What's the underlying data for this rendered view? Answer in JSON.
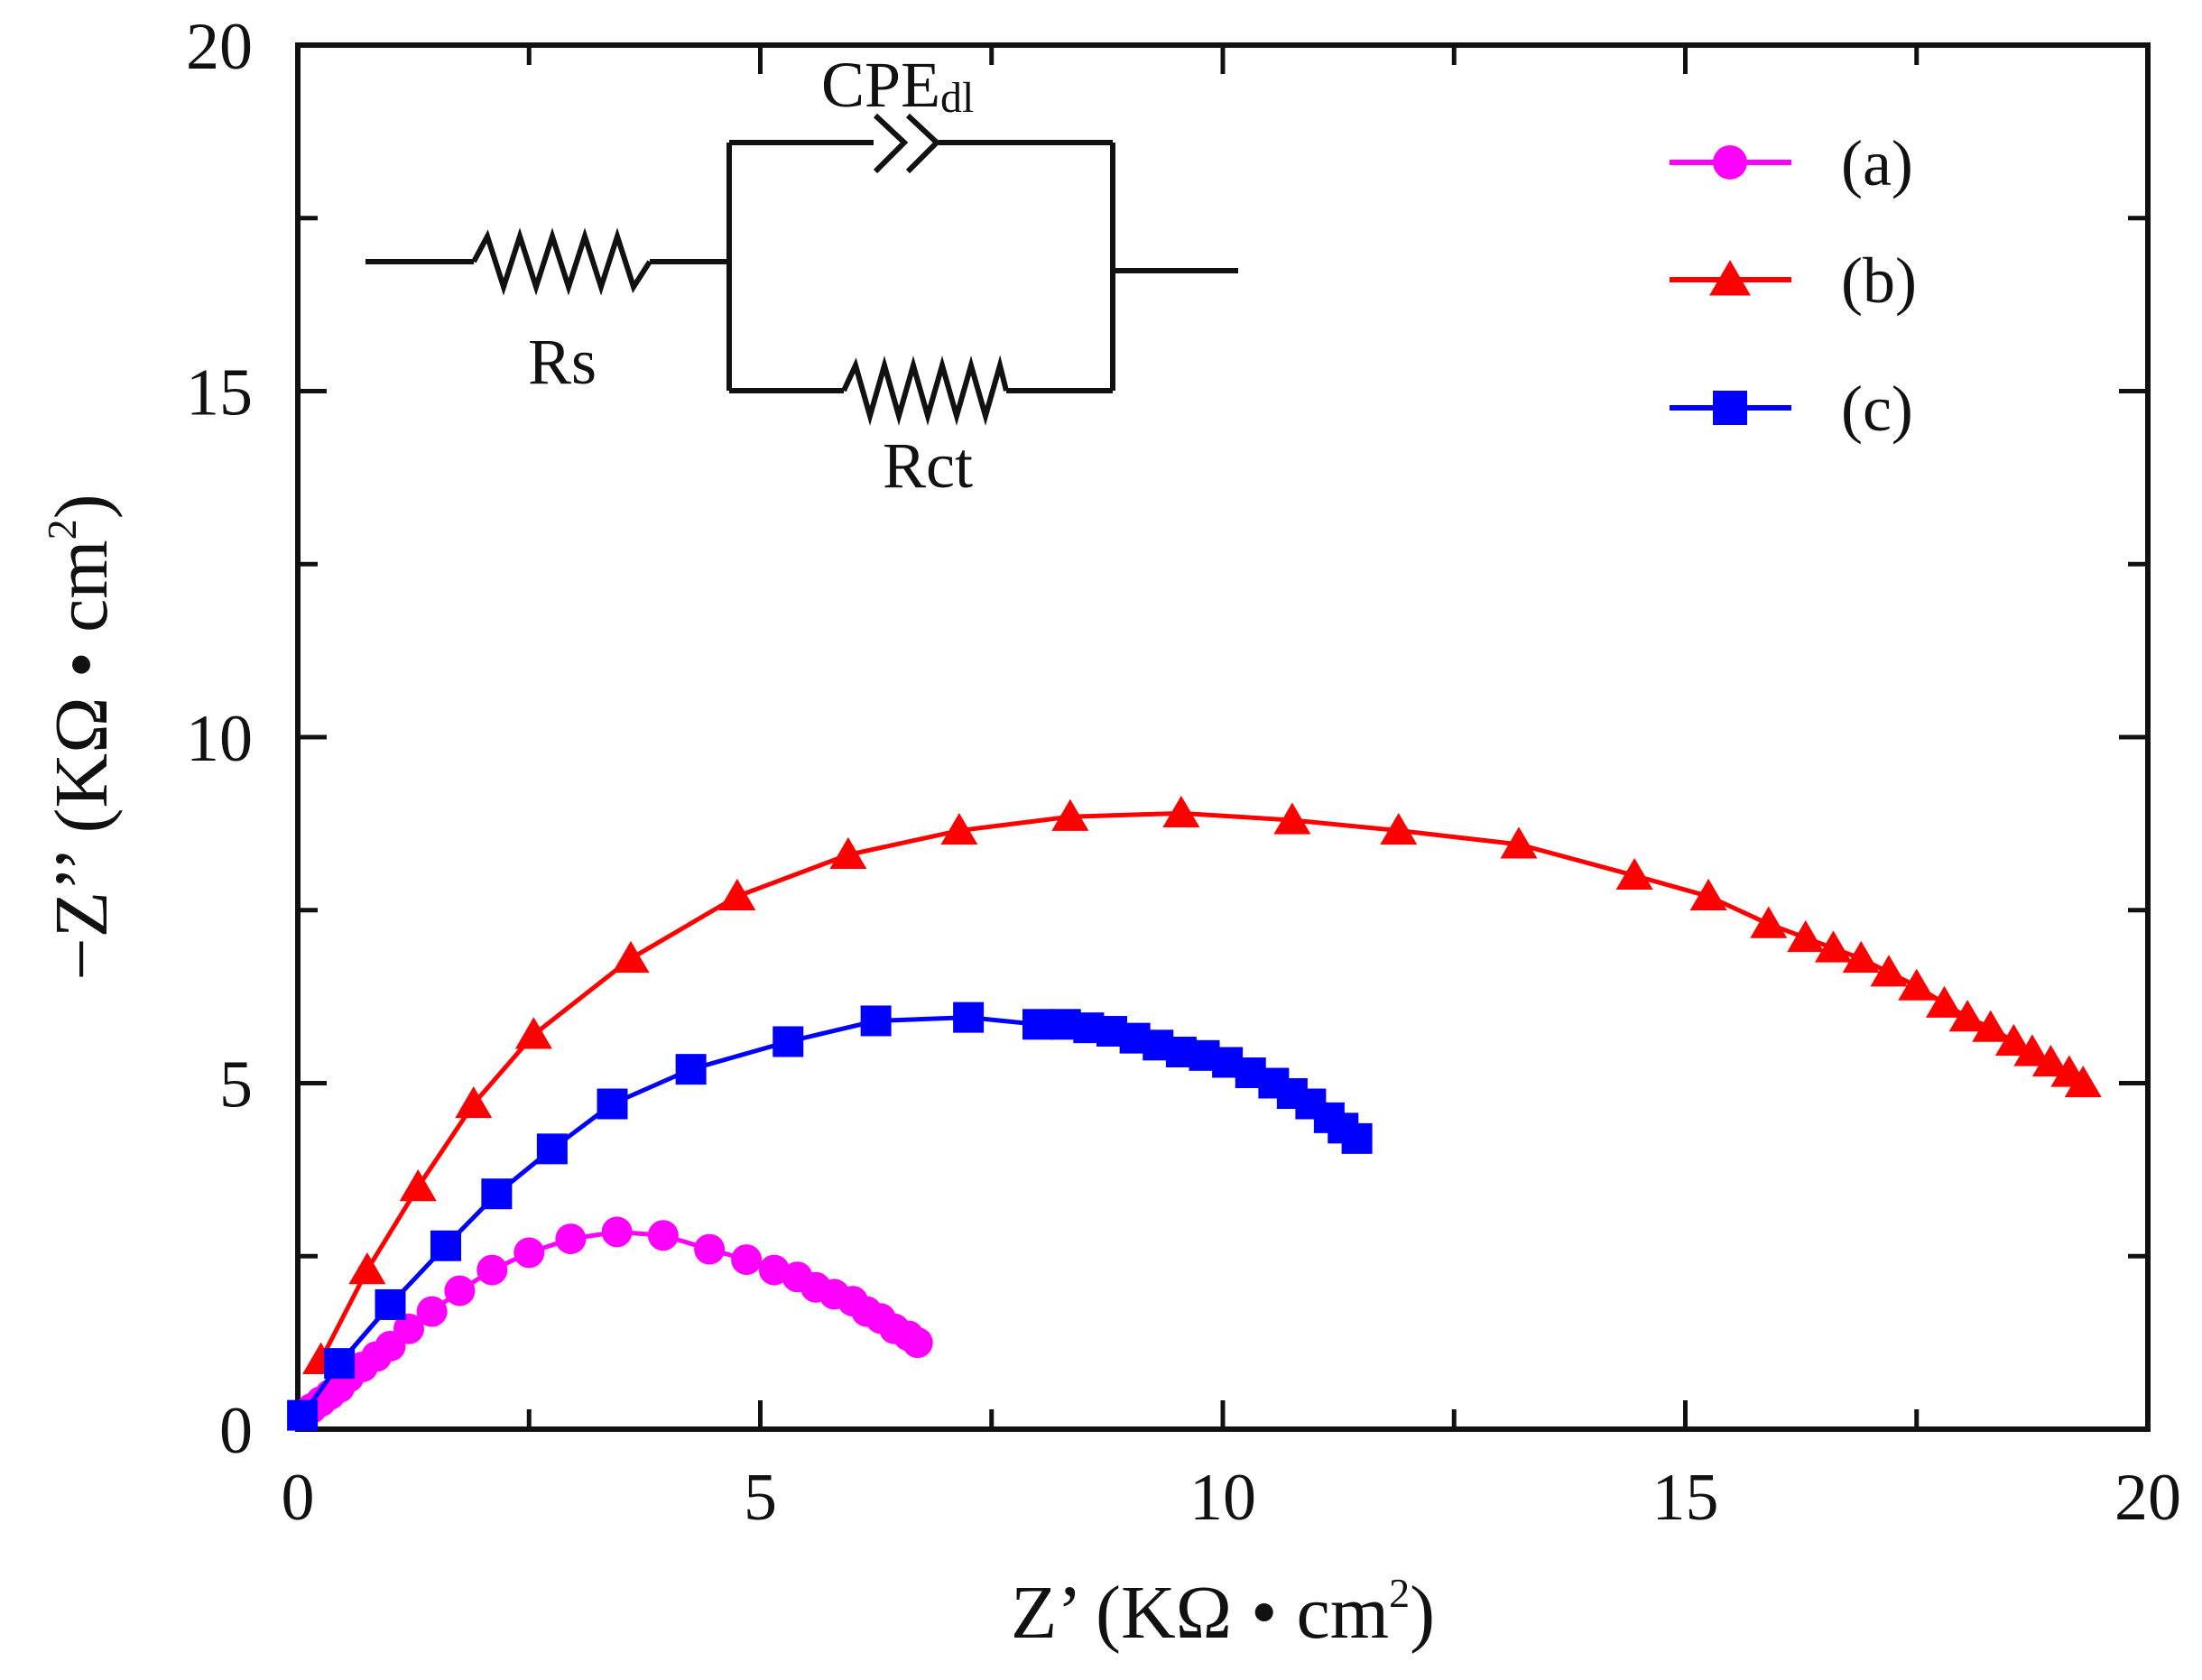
{
  "chart_data": {
    "type": "line",
    "title": "",
    "xlabel": "Z’ (KΩ • cm²)",
    "ylabel": "−Z’’ (KΩ • cm²)",
    "xlabel_parts": {
      "main": "Z’ (KΩ • cm",
      "sup": "2",
      "close": ")"
    },
    "ylabel_parts": {
      "main": "−Z’’ (KΩ • cm",
      "sup": "2",
      "close": ")"
    },
    "xlim": [
      0,
      20
    ],
    "ylim": [
      0,
      20
    ],
    "xticks": [
      0,
      5,
      10,
      15,
      20
    ],
    "yticks": [
      0,
      5,
      10,
      15,
      20
    ],
    "xtick_labels": [
      "0",
      "5",
      "10",
      "15",
      "20"
    ],
    "ytick_labels": [
      "0",
      "5",
      "10",
      "15",
      "20"
    ],
    "grid": false,
    "legend_position": "top-right",
    "series": [
      {
        "name": "(a)",
        "color": "#ff00ff",
        "marker": "circle",
        "x": [
          0.05,
          0.15,
          0.25,
          0.35,
          0.45,
          0.55,
          0.7,
          0.85,
          1.0,
          1.2,
          1.45,
          1.75,
          2.1,
          2.5,
          2.95,
          3.45,
          3.95,
          4.45,
          4.85,
          5.15,
          5.4,
          5.6,
          5.8,
          6.0,
          6.15,
          6.3,
          6.45,
          6.6,
          6.7
        ],
        "y": [
          0.2,
          0.3,
          0.4,
          0.5,
          0.6,
          0.75,
          0.9,
          1.05,
          1.2,
          1.45,
          1.7,
          2.0,
          2.3,
          2.55,
          2.75,
          2.85,
          2.8,
          2.6,
          2.45,
          2.3,
          2.2,
          2.05,
          1.95,
          1.85,
          1.7,
          1.6,
          1.45,
          1.35,
          1.25
        ]
      },
      {
        "name": "(b)",
        "color": "#ff0000",
        "marker": "triangle",
        "x": [
          0.25,
          0.75,
          1.3,
          1.9,
          2.55,
          3.6,
          4.75,
          5.95,
          7.15,
          8.35,
          9.55,
          10.75,
          11.9,
          13.2,
          14.45,
          15.25,
          15.9,
          16.3,
          16.6,
          16.9,
          17.2,
          17.5,
          17.8,
          18.05,
          18.3,
          18.55,
          18.75,
          18.95,
          19.15,
          19.3
        ],
        "y": [
          1.0,
          2.3,
          3.5,
          4.7,
          5.7,
          6.8,
          7.7,
          8.3,
          8.65,
          8.85,
          8.9,
          8.8,
          8.65,
          8.45,
          8.0,
          7.7,
          7.3,
          7.1,
          6.95,
          6.8,
          6.6,
          6.4,
          6.15,
          5.95,
          5.8,
          5.6,
          5.45,
          5.3,
          5.15,
          5.0
        ]
      },
      {
        "name": "(c)",
        "color": "#0000ff",
        "marker": "square",
        "x": [
          0.05,
          0.45,
          1.0,
          1.6,
          2.15,
          2.75,
          3.4,
          4.25,
          5.3,
          6.25,
          7.25,
          8.0,
          8.3,
          8.55,
          8.8,
          9.05,
          9.3,
          9.55,
          9.8,
          10.05,
          10.3,
          10.55,
          10.75,
          10.95,
          11.15,
          11.3,
          11.45
        ],
        "y": [
          0.2,
          0.95,
          1.8,
          2.65,
          3.4,
          4.05,
          4.7,
          5.2,
          5.6,
          5.9,
          5.95,
          5.85,
          5.85,
          5.8,
          5.75,
          5.65,
          5.55,
          5.45,
          5.4,
          5.3,
          5.15,
          5.0,
          4.85,
          4.7,
          4.5,
          4.35,
          4.2
        ]
      }
    ],
    "annotations": {
      "circuit": {
        "rs_label": "Rs",
        "rct_label": "Rct",
        "cpe_label_main": "CPE",
        "cpe_label_sub": "dl"
      }
    }
  }
}
